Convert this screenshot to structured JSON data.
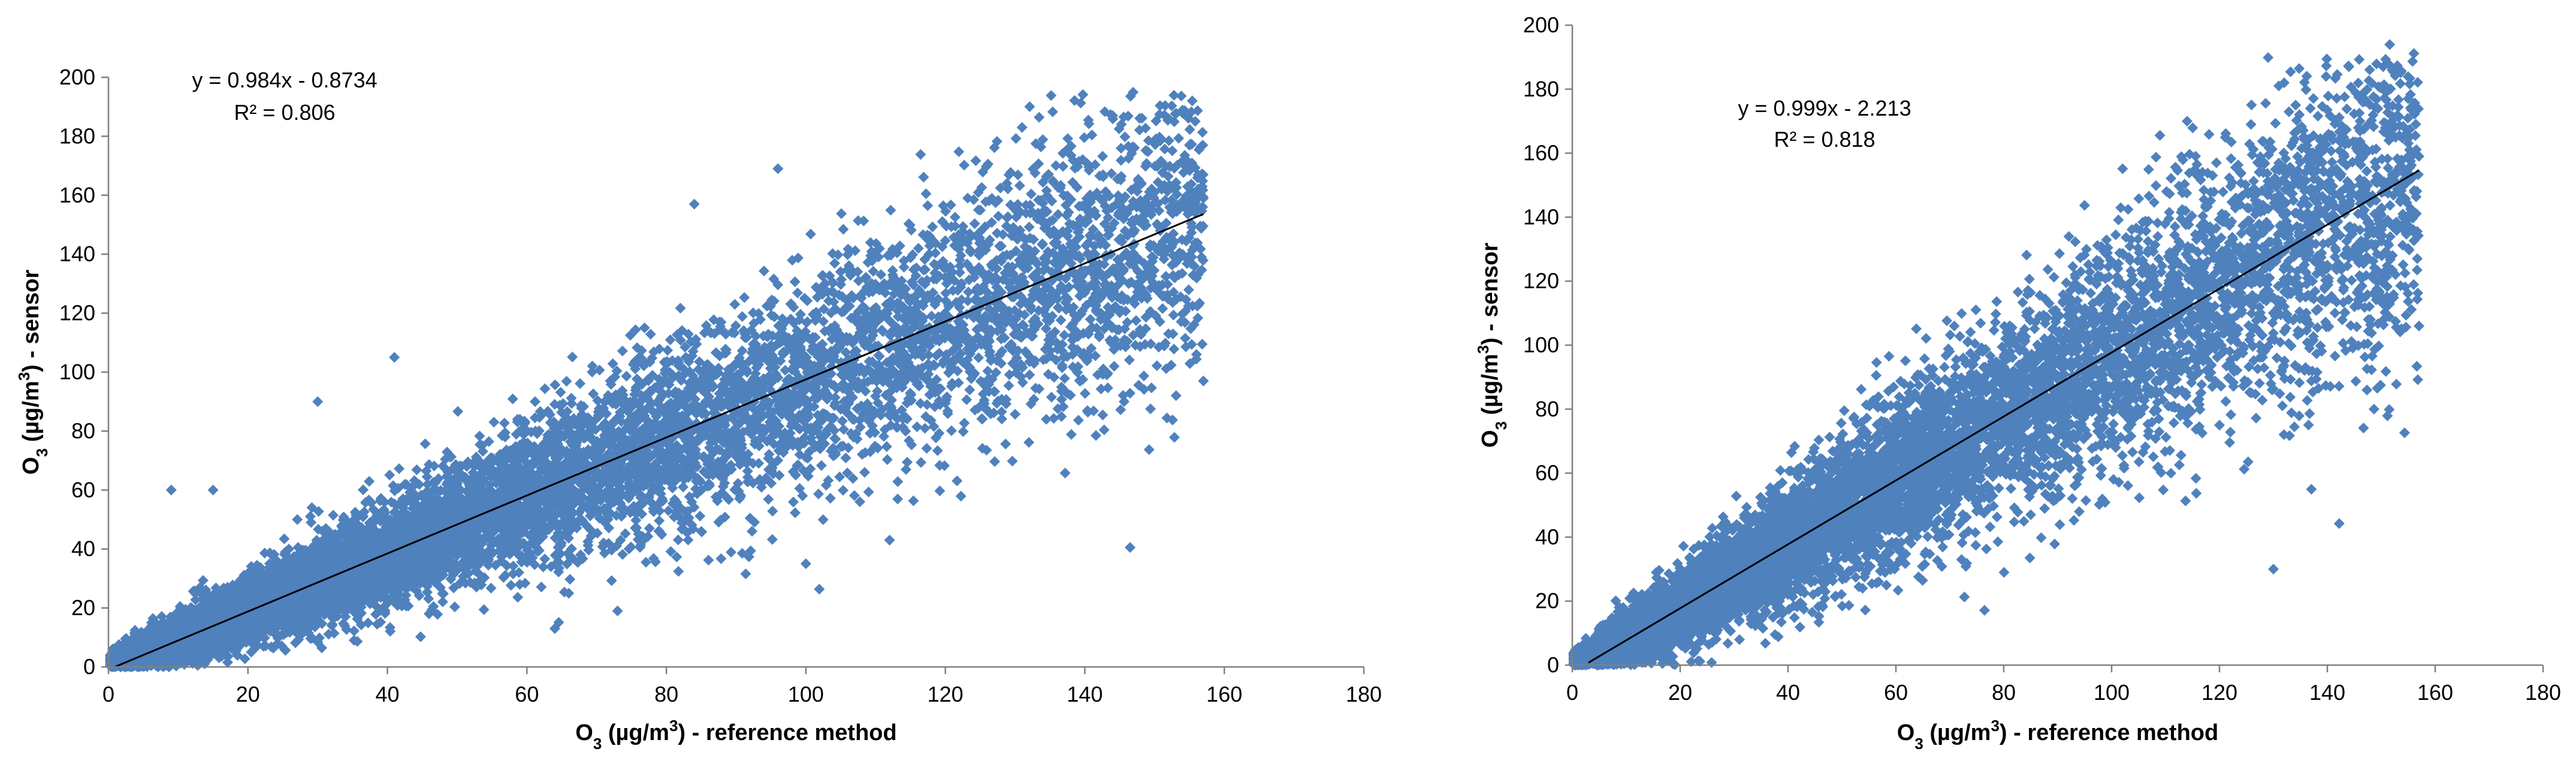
{
  "chart_data": [
    {
      "type": "scatter",
      "xlabel": "O3 (µg/m³) - reference method",
      "ylabel": "O3 (µg/m³) - sensor",
      "xlim": [
        0,
        180
      ],
      "ylim": [
        0,
        200
      ],
      "xticks": [
        0,
        20,
        40,
        60,
        80,
        100,
        120,
        140,
        160,
        180
      ],
      "yticks": [
        0,
        20,
        40,
        60,
        80,
        100,
        120,
        140,
        160,
        180,
        200
      ],
      "grid": false,
      "marker_color": "#4F81BD",
      "trendline": {
        "slope": 0.984,
        "intercept": -0.8734,
        "x_range": [
          1,
          157
        ],
        "color": "#000000"
      },
      "equation_text": "y = 0.984x - 0.8734",
      "r2_text": "R² = 0.806",
      "point_cloud": {
        "x_range": [
          0,
          157
        ],
        "approx_count": 9000
      },
      "outliers": [
        [
          144,
          187
        ],
        [
          152,
          186
        ],
        [
          155,
          177
        ],
        [
          157,
          159
        ],
        [
          156,
          106
        ],
        [
          157,
          97
        ],
        [
          154,
          140
        ],
        [
          152,
          113
        ],
        [
          131,
          183
        ],
        [
          9,
          60
        ],
        [
          15,
          60
        ],
        [
          30,
          90
        ],
        [
          41,
          105
        ],
        [
          100,
          35
        ],
        [
          112,
          43
        ],
        [
          85,
          46
        ],
        [
          64,
          13
        ],
        [
          66,
          25
        ],
        [
          73,
          19
        ],
        [
          84,
          157
        ],
        [
          96,
          169
        ]
      ]
    },
    {
      "type": "scatter",
      "xlabel": "O3 (µg/m³) - reference method",
      "ylabel": "O3 (µg/m³) - sensor",
      "xlim": [
        0,
        180
      ],
      "ylim": [
        0,
        200
      ],
      "xticks": [
        0,
        20,
        40,
        60,
        80,
        100,
        120,
        140,
        160,
        180
      ],
      "yticks": [
        0,
        20,
        40,
        60,
        80,
        100,
        120,
        140,
        160,
        180,
        200
      ],
      "grid": false,
      "marker_color": "#4F81BD",
      "trendline": {
        "slope": 0.999,
        "intercept": -2.213,
        "x_range": [
          3,
          157
        ],
        "color": "#000000"
      },
      "equation_text": "y = 0.999x - 2.213",
      "r2_text": "R² = 0.818",
      "point_cloud": {
        "x_range": [
          0,
          157
        ],
        "approx_count": 9000
      },
      "outliers": [
        [
          144,
          187
        ],
        [
          152,
          186
        ],
        [
          155,
          177
        ],
        [
          157,
          159
        ],
        [
          157,
          106
        ],
        [
          154,
          141
        ],
        [
          151,
          112
        ],
        [
          148,
          108
        ],
        [
          132,
          182
        ],
        [
          114,
          170
        ],
        [
          85,
          47
        ],
        [
          94,
          48
        ],
        [
          130,
          30
        ],
        [
          120,
          75
        ],
        [
          137,
          115
        ],
        [
          140,
          125
        ]
      ]
    }
  ]
}
